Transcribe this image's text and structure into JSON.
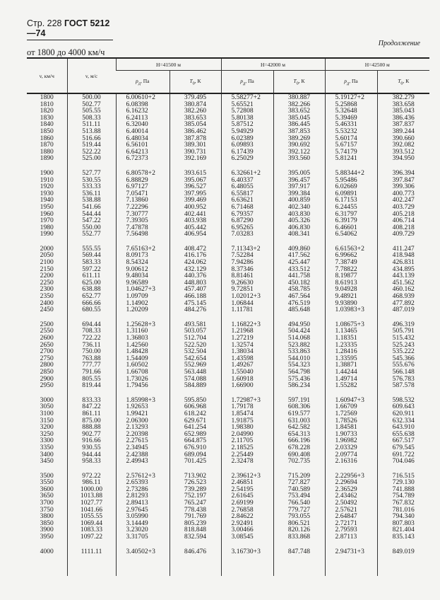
{
  "page_header": {
    "page": "Стр. 228",
    "standard": "ГОСТ 5212—74"
  },
  "continuation": "Продолжение",
  "range_title": "от 1800 до 4000 км/ч",
  "columns": {
    "v_kmh": "v, км/ч",
    "v_ms": "v, м/с",
    "groups": [
      "H=41500 м",
      "H=42000 м",
      "H=42500 м"
    ],
    "p": "p",
    "p_sub": "д",
    "p_unit": ", Па",
    "T": "T",
    "T_sub": "0",
    "T_unit": ", К"
  },
  "groups": [
    [
      [
        "1800",
        "500.00",
        "6.00610+2",
        "379.495",
        "5.58277+2",
        "380.887",
        "5.19127+2",
        "382.279"
      ],
      [
        "1810",
        "502.77",
        "6.08398",
        "380.874",
        "5.65521",
        "382.266",
        "5.25868",
        "383.658"
      ],
      [
        "1820",
        "505.55",
        "6.16232",
        "382.260",
        "5.72808",
        "383.652",
        "5.32648",
        "385.043"
      ],
      [
        "1830",
        "508.33",
        "6.24113",
        "383.653",
        "5.80138",
        "385.045",
        "5.39469",
        "386.436"
      ],
      [
        "1840",
        "511.11",
        "6.32040",
        "385.054",
        "5.87512",
        "386.445",
        "5.46331",
        "387.837"
      ],
      [
        "1850",
        "513.88",
        "6.40014",
        "386.462",
        "5.94929",
        "387.853",
        "5.53232",
        "389.244"
      ],
      [
        "1860",
        "516.66",
        "6.48034",
        "387.878",
        "6.02389",
        "389.269",
        "5.60174",
        "390.660"
      ],
      [
        "1870",
        "519.44",
        "6.56101",
        "389.301",
        "6.09893",
        "390.692",
        "5.67157",
        "392.082"
      ],
      [
        "1880",
        "522.22",
        "6.64213",
        "390.731",
        "6.17439",
        "392.122",
        "5.74179",
        "393.512"
      ],
      [
        "1890",
        "525.00",
        "6.72373",
        "392.169",
        "6.25029",
        "393.560",
        "5.81241",
        "394.950"
      ]
    ],
    [
      [
        "1900",
        "527.77",
        "6.80578+2",
        "393.615",
        "6.32661+2",
        "395.005",
        "5.88344+2",
        "396.394"
      ],
      [
        "1910",
        "530.55",
        "6.88829",
        "395.067",
        "6.40337",
        "396.457",
        "5.95486",
        "397.847"
      ],
      [
        "1920",
        "533.33",
        "6.97127",
        "396.527",
        "6.48055",
        "397.917",
        "6.02669",
        "399.306"
      ],
      [
        "1930",
        "536.11",
        "7.05471",
        "397.995",
        "6.55817",
        "399.384",
        "6.09891",
        "400.773"
      ],
      [
        "1940",
        "538.88",
        "7.13860",
        "399.469",
        "6.63621",
        "400.859",
        "6.17153",
        "402.247"
      ],
      [
        "1950",
        "541.66",
        "7.22296",
        "400.952",
        "6.71468",
        "402.340",
        "6.24455",
        "403.729"
      ],
      [
        "1960",
        "544.44",
        "7.30777",
        "402.441",
        "6.79357",
        "403.830",
        "6.31797",
        "405.218"
      ],
      [
        "1970",
        "547.22",
        "7.39305",
        "403.938",
        "6.87290",
        "405.326",
        "6.39179",
        "406.714"
      ],
      [
        "1980",
        "550.00",
        "7.47878",
        "405.442",
        "6.95265",
        "406.830",
        "6.46601",
        "408.218"
      ],
      [
        "1990",
        "552.77",
        "7.56498",
        "406.954",
        "7.03283",
        "408.341",
        "6.54062",
        "409.729"
      ]
    ],
    [
      [
        "2000",
        "555.55",
        "7.65163+2",
        "408.472",
        "7.11343+2",
        "409.860",
        "6.61563+2",
        "411.247"
      ],
      [
        "2050",
        "569.44",
        "8.09173",
        "416.176",
        "7.52284",
        "417.562",
        "6.99662",
        "418.948"
      ],
      [
        "2100",
        "583.33",
        "8.54324",
        "424.062",
        "7.94286",
        "425.447",
        "7.38749",
        "426.831"
      ],
      [
        "2150",
        "597.22",
        "9.00612",
        "432.129",
        "8.37346",
        "433.512",
        "7.78822",
        "434.895"
      ],
      [
        "2200",
        "611.11",
        "9.48034",
        "440.376",
        "8.81461",
        "441.758",
        "8.19877",
        "443.139"
      ],
      [
        "2250",
        "625.00",
        "9.96589",
        "448.803",
        "9.26630",
        "450.182",
        "8.61913",
        "451.562"
      ],
      [
        "2300",
        "638.88",
        "1.04627+3",
        "457.407",
        "9.72851",
        "458.785",
        "9.04928",
        "460.162"
      ],
      [
        "2350",
        "652.77",
        "1.09709",
        "466.188",
        "1.02012+3",
        "467.564",
        "9.48921",
        "468.939"
      ],
      [
        "2400",
        "666.66",
        "1.14902",
        "475.145",
        "1.06844",
        "476.519",
        "9.93890",
        "477.892"
      ],
      [
        "2450",
        "680.55",
        "1.20209",
        "484.276",
        "1.11781",
        "485.648",
        "1.03983+3",
        "487.019"
      ]
    ],
    [
      [
        "2500",
        "694.44",
        "1.25628+3",
        "493.581",
        "1.16822+3",
        "494.950",
        "1.08675+3",
        "496.319"
      ],
      [
        "2550",
        "708.33",
        "1.31160",
        "503.057",
        "1.21968",
        "504.424",
        "1.13465",
        "505.791"
      ],
      [
        "2600",
        "722.22",
        "1.36803",
        "512.704",
        "1.27219",
        "514.068",
        "1.18351",
        "515.432"
      ],
      [
        "2650",
        "736.11",
        "1.42560",
        "522.520",
        "1.32574",
        "523.882",
        "1.23335",
        "525.243"
      ],
      [
        "2700",
        "750.00",
        "1.48428",
        "532.504",
        "1.38034",
        "533.863",
        "1.28416",
        "535.222"
      ],
      [
        "2750",
        "763.88",
        "1.54409",
        "542.654",
        "1.43598",
        "544.010",
        "1.33595",
        "545.366"
      ],
      [
        "2800",
        "777.77",
        "1.60502",
        "552.969",
        "1.49267",
        "554.323",
        "1.38871",
        "555.676"
      ],
      [
        "2850",
        "791.66",
        "1.66708",
        "563.448",
        "1.55040",
        "564.798",
        "1.44244",
        "566.148"
      ],
      [
        "2900",
        "805.55",
        "1.73026",
        "574.088",
        "1.60918",
        "575.436",
        "1.49714",
        "576.783"
      ],
      [
        "2950",
        "819.44",
        "1.79456",
        "584.889",
        "1.66900",
        "586.234",
        "1.55282",
        "587.578"
      ]
    ],
    [
      [
        "3000",
        "833.33",
        "1.85998+3",
        "595.850",
        "1.72987+3",
        "597.191",
        "1.60947+3",
        "598.532"
      ],
      [
        "3050",
        "847.22",
        "1.92653",
        "606.968",
        "1.79178",
        "608.306",
        "1.66709",
        "609.643"
      ],
      [
        "3100",
        "861.11",
        "1.99421",
        "618.242",
        "1.85474",
        "619.577",
        "1.72569",
        "620.911"
      ],
      [
        "3150",
        "875.00",
        "2.06300",
        "629.671",
        "1.91875",
        "631.003",
        "1.78526",
        "632.334"
      ],
      [
        "3200",
        "888.88",
        "2.13293",
        "641.254",
        "1.98380",
        "642.582",
        "1.84581",
        "643.910"
      ],
      [
        "3250",
        "902.77",
        "2.20398",
        "652.989",
        "2.04990",
        "654.313",
        "1.90733",
        "655.638"
      ],
      [
        "3300",
        "916.66",
        "2.27615",
        "664.875",
        "2.11705",
        "666.196",
        "1.96982",
        "667.517"
      ],
      [
        "3350",
        "930.55",
        "2.34945",
        "676.910",
        "2.18525",
        "678.228",
        "2.03329",
        "679.545"
      ],
      [
        "3400",
        "944.44",
        "2.42388",
        "689.094",
        "2.25449",
        "690.408",
        "2.09774",
        "691.722"
      ],
      [
        "3450",
        "958.33",
        "2.49943",
        "701.425",
        "2.32478",
        "702.735",
        "2.16316",
        "704.046"
      ]
    ],
    [
      [
        "3500",
        "972.22",
        "2.57612+3",
        "713.902",
        "2.39612+3",
        "715.209",
        "2.22956+3",
        "716.515"
      ],
      [
        "3550",
        "986.11",
        "2.65393",
        "726.523",
        "2.46851",
        "727.827",
        "2.29694",
        "729.130"
      ],
      [
        "3600",
        "1000.00",
        "2.73286",
        "739.289",
        "2.54195",
        "740.589",
        "2.36529",
        "741.888"
      ],
      [
        "3650",
        "1013.88",
        "2.81293",
        "752.197",
        "2.61645",
        "753.494",
        "2.43462",
        "754.789"
      ],
      [
        "3700",
        "1027.77",
        "2.89413",
        "765.247",
        "2.69199",
        "766.540",
        "2.50492",
        "767.832"
      ],
      [
        "3750",
        "1041.66",
        "2.97645",
        "778.438",
        "2.76858",
        "779.727",
        "2.57621",
        "781.016"
      ],
      [
        "3800",
        "1055.55",
        "3.05990",
        "791.769",
        "2.84622",
        "793.055",
        "2.64847",
        "794.340"
      ],
      [
        "3850",
        "1069.44",
        "3.14449",
        "805.239",
        "2.92491",
        "806.521",
        "2.72171",
        "807.803"
      ],
      [
        "3900",
        "1083.33",
        "3.23020",
        "818.848",
        "3.00466",
        "820.126",
        "2.79593",
        "821.404"
      ],
      [
        "3950",
        "1097.22",
        "3.31705",
        "832.594",
        "3.08545",
        "833.868",
        "2.87113",
        "835.143"
      ]
    ],
    [
      [
        "4000",
        "1111.11",
        "3.40502+3",
        "846.476",
        "3.16730+3",
        "847.748",
        "2.94731+3",
        "849.019"
      ]
    ]
  ]
}
